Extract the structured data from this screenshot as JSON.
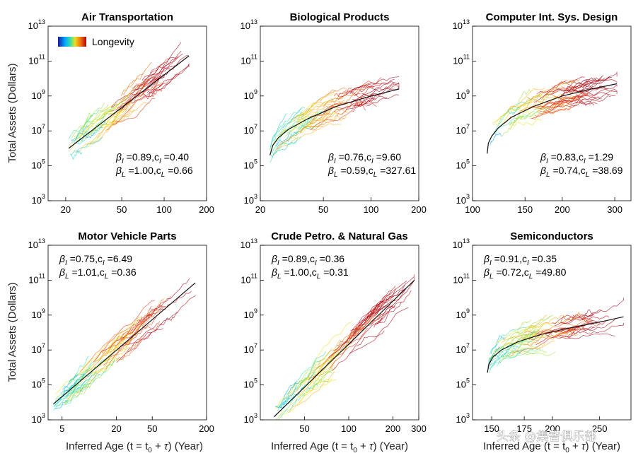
{
  "figure": {
    "ylabel": "Total Assets (Dollars)",
    "xlabel_parts": {
      "pre": "Inferred Age (t = t",
      "sub": "0",
      "mid": " + ",
      "tau": "τ",
      "post": ") (Year)"
    },
    "legend_label": "Longevity",
    "watermark": "头条 @集智俱乐部",
    "colors": {
      "fit_line": "#111111",
      "axis": "#000000"
    }
  },
  "chart_data": [
    {
      "type": "line",
      "title": "Air Transportation",
      "xscale": "log",
      "yscale": "log",
      "xlim": [
        15,
        200
      ],
      "ylim": [
        1000,
        10000000000000
      ],
      "xticks": [
        20,
        50,
        100,
        200
      ],
      "yticks": [
        {
          "base": "10",
          "exp": "13",
          "v": 10000000000000.0
        },
        {
          "base": "10",
          "exp": "11",
          "v": 100000000000.0
        },
        {
          "base": "10",
          "exp": "9",
          "v": 1000000000.0
        },
        {
          "base": "10",
          "exp": "7",
          "v": 10000000.0
        },
        {
          "base": "10",
          "exp": "5",
          "v": 100000.0
        },
        {
          "base": "10",
          "exp": "3",
          "v": 1000.0
        }
      ],
      "annotation": [
        {
          "s1": "β",
          "sub1": "I",
          "a": " =0.89,c",
          "sub2": "I",
          "b": " =0.40"
        },
        {
          "s1": "β",
          "sub1": "L",
          "a": " =1.00,c",
          "sub2": "L",
          "b": " =0.66"
        }
      ],
      "annotation_pos": "lower-right",
      "fit": {
        "x": [
          21,
          150
        ],
        "y": [
          1000000,
          200000000000
        ]
      },
      "show_legend": true
    },
    {
      "type": "line",
      "title": "Biological Products",
      "xscale": "log",
      "yscale": "log",
      "xlim": [
        20,
        200
      ],
      "ylim": [
        1000,
        10000000000000
      ],
      "xticks": [
        20,
        50,
        100,
        200
      ],
      "yticks": [
        {
          "base": "10",
          "exp": "13",
          "v": 10000000000000.0
        },
        {
          "base": "10",
          "exp": "11",
          "v": 100000000000.0
        },
        {
          "base": "10",
          "exp": "9",
          "v": 1000000000.0
        },
        {
          "base": "10",
          "exp": "7",
          "v": 10000000.0
        },
        {
          "base": "10",
          "exp": "5",
          "v": 100000.0
        },
        {
          "base": "10",
          "exp": "3",
          "v": 1000.0
        }
      ],
      "annotation": [
        {
          "s1": "β",
          "sub1": "I",
          "a": " =0.76,c",
          "sub2": "I",
          "b": " =9.60"
        },
        {
          "s1": "β",
          "sub1": "L",
          "a": " =0.59,c",
          "sub2": "L",
          "b": " =327.61"
        }
      ],
      "annotation_pos": "lower-right",
      "fit": {
        "x": [
          23,
          24,
          26,
          30,
          40,
          60,
          100,
          150
        ],
        "y": [
          400000,
          1500000,
          4000000,
          12000000,
          50000000,
          250000000,
          1000000000,
          2500000000
        ]
      },
      "show_legend": false
    },
    {
      "type": "line",
      "title": "Computer Int. Sys. Design",
      "xscale": "log",
      "yscale": "log",
      "xlim": [
        100,
        340
      ],
      "ylim": [
        1000,
        10000000000000
      ],
      "xticks": [
        100,
        150,
        200,
        300
      ],
      "yticks": [
        {
          "base": "10",
          "exp": "13",
          "v": 10000000000000.0
        },
        {
          "base": "10",
          "exp": "11",
          "v": 100000000000.0
        },
        {
          "base": "10",
          "exp": "9",
          "v": 1000000000.0
        },
        {
          "base": "10",
          "exp": "7",
          "v": 10000000.0
        },
        {
          "base": "10",
          "exp": "5",
          "v": 100000.0
        },
        {
          "base": "10",
          "exp": "3",
          "v": 1000.0
        }
      ],
      "annotation": [
        {
          "s1": "β",
          "sub1": "I",
          "a": " =0.83,c",
          "sub2": "I",
          "b": " =1.29"
        },
        {
          "s1": "β",
          "sub1": "L",
          "a": " =0.74,c",
          "sub2": "L",
          "b": " =38.69"
        }
      ],
      "annotation_pos": "lower-right",
      "fit": {
        "x": [
          112,
          113,
          116,
          122,
          135,
          160,
          200,
          250,
          305
        ],
        "y": [
          500000,
          2000000,
          5000000,
          15000000,
          60000000,
          250000000,
          1000000000,
          2500000000,
          5000000000
        ]
      },
      "show_legend": false
    },
    {
      "type": "line",
      "title": "Motor Vehicle Parts",
      "xscale": "log",
      "yscale": "log",
      "xlim": [
        3.5,
        200
      ],
      "ylim": [
        1000,
        10000000000000
      ],
      "xticks": [
        5,
        20,
        50,
        200
      ],
      "yticks": [
        {
          "base": "10",
          "exp": "13",
          "v": 10000000000000.0
        },
        {
          "base": "10",
          "exp": "11",
          "v": 100000000000.0
        },
        {
          "base": "10",
          "exp": "9",
          "v": 1000000000.0
        },
        {
          "base": "10",
          "exp": "7",
          "v": 10000000.0
        },
        {
          "base": "10",
          "exp": "5",
          "v": 100000.0
        },
        {
          "base": "10",
          "exp": "3",
          "v": 1000.0
        }
      ],
      "annotation": [
        {
          "s1": "β",
          "sub1": "I",
          "a": " =0.75,c",
          "sub2": "I",
          "b": " =6.49"
        },
        {
          "s1": "β",
          "sub1": "L",
          "a": " =1.01,c",
          "sub2": "L",
          "b": " =0.36"
        }
      ],
      "annotation_pos": "upper-left",
      "fit": {
        "x": [
          4,
          150
        ],
        "y": [
          8000,
          70000000000
        ]
      },
      "show_legend": false
    },
    {
      "type": "line",
      "title": "Crude Petro. & Natural Gas",
      "xscale": "log",
      "yscale": "log",
      "xlim": [
        25,
        300
      ],
      "ylim": [
        1000,
        10000000000000
      ],
      "xticks": [
        50,
        100,
        200,
        300
      ],
      "yticks": [
        {
          "base": "10",
          "exp": "13",
          "v": 10000000000000.0
        },
        {
          "base": "10",
          "exp": "11",
          "v": 100000000000.0
        },
        {
          "base": "10",
          "exp": "9",
          "v": 1000000000.0
        },
        {
          "base": "10",
          "exp": "7",
          "v": 10000000.0
        },
        {
          "base": "10",
          "exp": "5",
          "v": 100000.0
        },
        {
          "base": "10",
          "exp": "3",
          "v": 1000.0
        }
      ],
      "annotation": [
        {
          "s1": "β",
          "sub1": "I",
          "a": " =0.89,c",
          "sub2": "I",
          "b": " =0.36"
        },
        {
          "s1": "β",
          "sub1": "L",
          "a": " =1.00,c",
          "sub2": "L",
          "b": " =0.31"
        }
      ],
      "annotation_pos": "upper-left",
      "fit": {
        "x": [
          31,
          280
        ],
        "y": [
          1500,
          100000000000
        ]
      },
      "show_legend": false
    },
    {
      "type": "line",
      "title": "Semiconductors",
      "xscale": "log",
      "yscale": "log",
      "xlim": [
        137,
        290
      ],
      "ylim": [
        1000,
        10000000000000
      ],
      "xticks": [
        150,
        175,
        200,
        250
      ],
      "yticks": [
        {
          "base": "10",
          "exp": "13",
          "v": 10000000000000.0
        },
        {
          "base": "10",
          "exp": "11",
          "v": 100000000000.0
        },
        {
          "base": "10",
          "exp": "9",
          "v": 1000000000.0
        },
        {
          "base": "10",
          "exp": "7",
          "v": 10000000.0
        },
        {
          "base": "10",
          "exp": "5",
          "v": 100000.0
        },
        {
          "base": "10",
          "exp": "3",
          "v": 1000.0
        }
      ],
      "annotation": [
        {
          "s1": "β",
          "sub1": "I",
          "a": " =0.91,c",
          "sub2": "I",
          "b": " =0.35"
        },
        {
          "s1": "β",
          "sub1": "L",
          "a": " =0.72,c",
          "sub2": "L",
          "b": " =49.80"
        }
      ],
      "annotation_pos": "upper-left",
      "fit": {
        "x": [
          147,
          148,
          151,
          157,
          170,
          190,
          220,
          255,
          280
        ],
        "y": [
          500000,
          1500000,
          4000000,
          10000000,
          30000000,
          80000000,
          200000000,
          450000000,
          800000000
        ]
      },
      "show_legend": false
    }
  ]
}
